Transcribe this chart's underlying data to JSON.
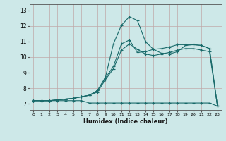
{
  "xlabel": "Humidex (Indice chaleur)",
  "background_color": "#cde8e8",
  "grid_color": "#c0a8a8",
  "line_color": "#1a6b6b",
  "xlim": [
    -0.5,
    23.5
  ],
  "ylim": [
    6.6,
    13.4
  ],
  "yticks": [
    7,
    8,
    9,
    10,
    11,
    12,
    13
  ],
  "xticks": [
    0,
    1,
    2,
    3,
    4,
    5,
    6,
    7,
    8,
    9,
    10,
    11,
    12,
    13,
    14,
    15,
    16,
    17,
    18,
    19,
    20,
    21,
    22,
    23
  ],
  "line1_x": [
    0,
    1,
    2,
    3,
    4,
    5,
    6,
    7,
    8,
    9,
    10,
    11,
    12,
    13,
    14,
    15,
    16,
    17,
    18,
    19,
    20,
    21,
    22,
    23
  ],
  "line1_y": [
    7.2,
    7.2,
    7.2,
    7.2,
    7.2,
    7.2,
    7.2,
    7.05,
    7.05,
    7.05,
    7.05,
    7.05,
    7.05,
    7.05,
    7.05,
    7.05,
    7.05,
    7.05,
    7.05,
    7.05,
    7.05,
    7.05,
    7.05,
    6.85
  ],
  "line2_x": [
    0,
    1,
    2,
    3,
    4,
    5,
    6,
    7,
    8,
    9,
    10,
    11,
    12,
    13,
    14,
    15,
    16,
    17,
    18,
    19,
    20,
    21,
    22,
    23
  ],
  "line2_y": [
    7.2,
    7.2,
    7.2,
    7.25,
    7.3,
    7.35,
    7.45,
    7.55,
    7.85,
    8.7,
    10.85,
    12.05,
    12.6,
    12.35,
    11.0,
    10.5,
    10.25,
    10.2,
    10.35,
    10.75,
    10.8,
    10.75,
    10.55,
    6.85
  ],
  "line3_x": [
    0,
    1,
    2,
    3,
    4,
    5,
    6,
    7,
    8,
    9,
    10,
    11,
    12,
    13,
    14,
    15,
    16,
    17,
    18,
    19,
    20,
    21,
    22,
    23
  ],
  "line3_y": [
    7.2,
    7.2,
    7.2,
    7.25,
    7.3,
    7.35,
    7.45,
    7.55,
    7.85,
    8.65,
    9.4,
    10.85,
    11.1,
    10.3,
    10.35,
    10.5,
    10.55,
    10.65,
    10.8,
    10.8,
    10.8,
    10.75,
    10.55,
    6.85
  ],
  "line4_x": [
    0,
    1,
    2,
    3,
    4,
    5,
    6,
    7,
    8,
    9,
    10,
    11,
    12,
    13,
    14,
    15,
    16,
    17,
    18,
    19,
    20,
    21,
    22,
    23
  ],
  "line4_y": [
    7.2,
    7.2,
    7.2,
    7.25,
    7.3,
    7.35,
    7.45,
    7.55,
    7.75,
    8.55,
    9.25,
    10.45,
    10.85,
    10.5,
    10.2,
    10.1,
    10.2,
    10.3,
    10.45,
    10.55,
    10.55,
    10.45,
    10.35,
    6.85
  ]
}
